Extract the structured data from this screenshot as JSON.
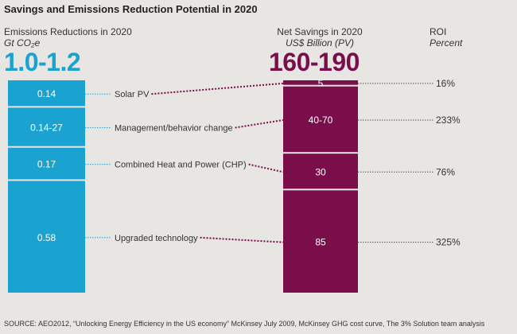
{
  "title": "Savings and Emissions Reduction Potential in 2020",
  "left_header": {
    "line1": "Emissions Reductions in 2020",
    "line2": "Gt CO₂e",
    "total": "1.0-1.2"
  },
  "mid_header": {
    "line1": "Net Savings in 2020",
    "line2": "US$ Billion (PV)",
    "total": "160-190"
  },
  "right_header": {
    "line1": "ROI",
    "line2": "Percent"
  },
  "source": "SOURCE: AEO2012, “Unlocking Energy Efficiency in the US economy” McKinsey July 2009, McKinsey GHG cost curve, The 3% Solution team analysis",
  "colors": {
    "emissions": "#1aa3d0",
    "savings": "#7a0e4a",
    "dotted_line": "#7a0e4a",
    "dotted_line_left": "#1aa3d0"
  },
  "chart_data": {
    "type": "bar",
    "title": "Savings and Emissions Reduction Potential in 2020",
    "categories": [
      "Solar PV",
      "Management/behavior change",
      "Combined Heat and Power (CHP)",
      "Upgraded technology"
    ],
    "series": [
      {
        "name": "Emissions Reductions in 2020",
        "unit": "Gt CO₂e",
        "total": "1.0-1.2",
        "labels": [
          "0.14",
          "0.14-27",
          "0.17",
          "0.58"
        ],
        "values": [
          0.14,
          0.205,
          0.17,
          0.58
        ]
      },
      {
        "name": "Net Savings in 2020",
        "unit": "US$ Billion (PV)",
        "total": "160-190",
        "labels": [
          "5",
          "40-70",
          "30",
          "85"
        ],
        "values": [
          5,
          55,
          30,
          85
        ]
      },
      {
        "name": "ROI",
        "unit": "Percent",
        "labels": [
          "16%",
          "233%",
          "76%",
          "325%"
        ],
        "values": [
          16,
          233,
          76,
          325
        ]
      }
    ]
  }
}
